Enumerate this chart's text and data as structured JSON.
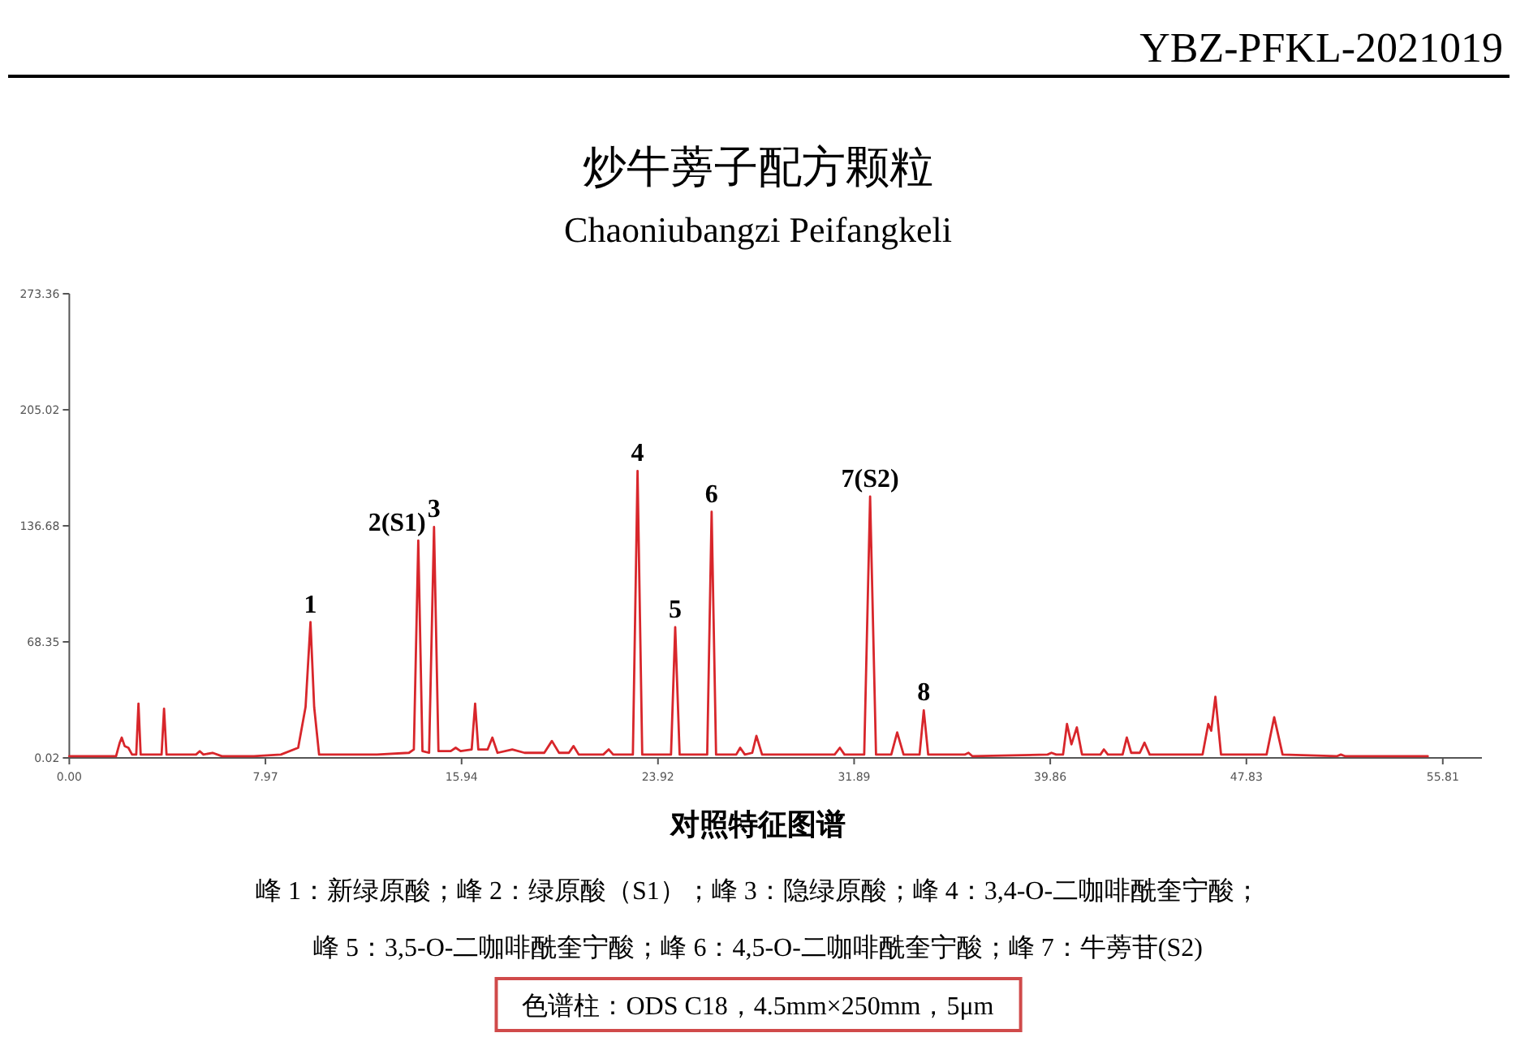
{
  "chart_data": {
    "type": "line",
    "title": "炒牛蒡子配方颗粒",
    "subtitle": "Chaoniubangzi Peifangkeli",
    "x": [
      0.0,
      1.9,
      2.05,
      2.13,
      2.25,
      2.4,
      2.55,
      2.72,
      2.81,
      2.9,
      3.75,
      3.85,
      3.95,
      5.15,
      5.3,
      5.45,
      5.82,
      6.2,
      7.5,
      8.6,
      9.3,
      9.6,
      9.8,
      9.95,
      10.15,
      12.5,
      13.8,
      14.0,
      14.18,
      14.35,
      14.62,
      14.82,
      15.0,
      15.5,
      15.7,
      15.9,
      16.35,
      16.49,
      16.62,
      17.0,
      17.19,
      17.4,
      18.0,
      18.5,
      19.3,
      19.61,
      19.9,
      20.3,
      20.49,
      20.7,
      21.7,
      21.92,
      22.1,
      22.9,
      23.09,
      23.28,
      24.45,
      24.62,
      24.8,
      25.92,
      26.1,
      26.28,
      27.1,
      27.26,
      27.45,
      27.75,
      27.92,
      28.15,
      31.1,
      31.31,
      31.5,
      32.3,
      32.54,
      32.78,
      33.4,
      33.64,
      33.9,
      34.55,
      34.72,
      34.9,
      36.4,
      36.54,
      36.7,
      39.75,
      39.91,
      40.1,
      40.38,
      40.54,
      40.72,
      40.94,
      41.15,
      41.9,
      42.04,
      42.2,
      42.8,
      42.97,
      43.15,
      43.5,
      43.69,
      43.9,
      46.05,
      46.28,
      46.4,
      46.57,
      46.8,
      48.65,
      48.96,
      49.3,
      51.5,
      51.67,
      51.85,
      55.2
    ],
    "series": [
      {
        "color": "#d8262b",
        "values": [
          1,
          1,
          9,
          12,
          7,
          6,
          2,
          2,
          32,
          2,
          2,
          29,
          2,
          2,
          4,
          2,
          3,
          1,
          1,
          2,
          6,
          30,
          80,
          30,
          2,
          2,
          3,
          5,
          128,
          4,
          3,
          136,
          4,
          4,
          6,
          4,
          5,
          32,
          5,
          5,
          12,
          3,
          5,
          3,
          3,
          10,
          3,
          3,
          7,
          2,
          2,
          5,
          2,
          2,
          169,
          2,
          2,
          77,
          2,
          2,
          145,
          2,
          2,
          6,
          2,
          3,
          13,
          2,
          2,
          6,
          2,
          2,
          154,
          2,
          2,
          15,
          2,
          2,
          28,
          2,
          2,
          3,
          1,
          2,
          3,
          2,
          2,
          20,
          8,
          18,
          2,
          2,
          5,
          2,
          2,
          12,
          3,
          3,
          9,
          2,
          2,
          20,
          16,
          36,
          2,
          2,
          24,
          2,
          1,
          2,
          1,
          1
        ]
      }
    ],
    "xlim": [
      0,
      57.4
    ],
    "ylim": [
      0.02,
      273.36
    ],
    "xticks": [
      {
        "value": 0,
        "label": "0.00"
      },
      7.97,
      15.94,
      23.92,
      31.89,
      39.86,
      47.83,
      55.81
    ],
    "yticks": [
      0.02,
      68.35,
      136.68,
      205.02,
      273.36
    ],
    "line_style": "solid",
    "annotations": [
      "YBZ-PFKL-2021019",
      {
        "text": "1",
        "x": 9.8,
        "y": 80
      },
      {
        "text": "2(S1)",
        "x": 14.18,
        "y": 128
      },
      {
        "text": "3",
        "x": 14.82,
        "y": 136
      },
      {
        "text": "4",
        "x": 23.09,
        "y": 169
      },
      {
        "text": "5",
        "x": 24.62,
        "y": 77
      },
      {
        "text": "6",
        "x": 26.1,
        "y": 145
      },
      {
        "text": "7(S2)",
        "x": 32.54,
        "y": 154
      },
      {
        "text": "8",
        "x": 34.72,
        "y": 28
      },
      "对照特征图谱",
      "峰 1：新绿原酸；峰 2：绿原酸（S1）；峰 3：隐绿原酸；峰 4：3,4-O-二咖啡酰奎宁酸；",
      "峰 5：3,5-O-二咖啡酰奎宁酸；峰 6：4,5-O-二咖啡酰奎宁酸；峰 7：牛蒡苷(S2)",
      "色谱柱：ODS C18，4.5mm×250mm，5μm"
    ]
  }
}
